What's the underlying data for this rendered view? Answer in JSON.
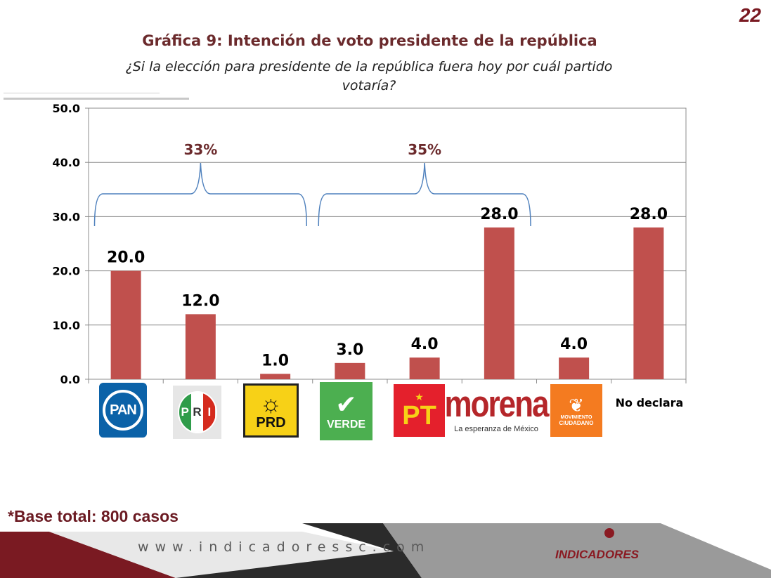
{
  "page_number": "22",
  "title": "Gráfica 9: Intención de voto presidente de la república",
  "subtitle": "¿Si la elección para presidente de la república fuera hoy por cuál partido votaría?",
  "colors": {
    "bar": "#c0504d",
    "title": "#6b2a2c",
    "bracket": "#4f81bd",
    "bracket_label": "#6b2a2c",
    "pan_blue": "#0b62a8",
    "pri_green": "#2f9c4a",
    "pri_red": "#d52b1e",
    "prd_yellow": "#f7d117",
    "verde_green": "#4caf50",
    "pt_red": "#e4202c",
    "morena_red": "#b5262a",
    "mc_orange": "#f47b20",
    "footer_maroon": "#7a1a22"
  },
  "logos": {
    "pan": "PAN",
    "pri_letters": [
      "P",
      "R",
      "I"
    ],
    "prd": "PRD",
    "verde": "VERDE",
    "pt": "PT",
    "morena": "morena",
    "morena_tagline": "La esperanza de México",
    "mc_line1": "MOVIMIENTO",
    "mc_line2": "CIUDADANO"
  },
  "chart_data": {
    "type": "bar",
    "title": "Gráfica 9: Intención de voto presidente de la república",
    "subtitle": "¿Si la elección para presidente de la república fuera hoy por cuál partido votaría?",
    "categories": [
      "PAN",
      "PRI",
      "PRD",
      "VERDE",
      "PT",
      "morena",
      "MOVIMIENTO CIUDADANO",
      "No declara"
    ],
    "values": [
      20.0,
      12.0,
      1.0,
      3.0,
      4.0,
      28.0,
      4.0,
      28.0
    ],
    "value_labels": [
      "20.0",
      "12.0",
      "1.0",
      "3.0",
      "4.0",
      "28.0",
      "4.0",
      "28.0"
    ],
    "ylim": [
      0,
      50
    ],
    "yticks": [
      "0.0",
      "10.0",
      "20.0",
      "30.0",
      "40.0",
      "50.0"
    ],
    "grid": true,
    "legend": "none",
    "brackets": [
      {
        "label": "33%",
        "from_category": 0,
        "to_category": 2
      },
      {
        "label": "35%",
        "from_category": 3,
        "to_category": 5
      }
    ]
  },
  "footer": {
    "base_note": "*Base total: 800 casos",
    "url": "www.indicadoressc.com",
    "brand": "INDICADORES"
  }
}
